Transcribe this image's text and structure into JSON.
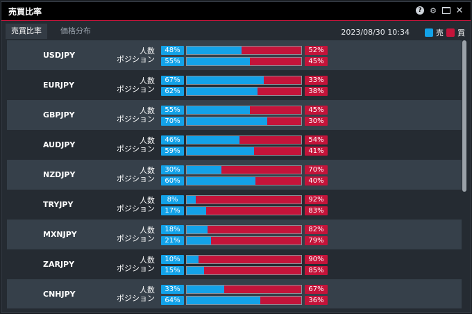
{
  "window": {
    "title": "売買比率"
  },
  "tabs": [
    {
      "label": "売買比率"
    },
    {
      "label": "価格分布"
    }
  ],
  "timestamp": "2023/08/30 10:34",
  "legend": {
    "sell": "売",
    "buy": "買",
    "sell_color": "#13a2e8",
    "buy_color": "#c4143a"
  },
  "row_labels": {
    "count": "人数",
    "position": "ポジション"
  },
  "rows": [
    {
      "pair": "USDJPY",
      "count": {
        "sell": "48%",
        "buy": "52%",
        "sell_value": 48
      },
      "position": {
        "sell": "55%",
        "buy": "45%",
        "sell_value": 55
      }
    },
    {
      "pair": "EURJPY",
      "count": {
        "sell": "67%",
        "buy": "33%",
        "sell_value": 67
      },
      "position": {
        "sell": "62%",
        "buy": "38%",
        "sell_value": 62
      }
    },
    {
      "pair": "GBPJPY",
      "count": {
        "sell": "55%",
        "buy": "45%",
        "sell_value": 55
      },
      "position": {
        "sell": "70%",
        "buy": "30%",
        "sell_value": 70
      }
    },
    {
      "pair": "AUDJPY",
      "count": {
        "sell": "46%",
        "buy": "54%",
        "sell_value": 46
      },
      "position": {
        "sell": "59%",
        "buy": "41%",
        "sell_value": 59
      }
    },
    {
      "pair": "NZDJPY",
      "count": {
        "sell": "30%",
        "buy": "70%",
        "sell_value": 30
      },
      "position": {
        "sell": "60%",
        "buy": "40%",
        "sell_value": 60
      }
    },
    {
      "pair": "TRYJPY",
      "count": {
        "sell": "8%",
        "buy": "92%",
        "sell_value": 8
      },
      "position": {
        "sell": "17%",
        "buy": "83%",
        "sell_value": 17
      }
    },
    {
      "pair": "MXNJPY",
      "count": {
        "sell": "18%",
        "buy": "82%",
        "sell_value": 18
      },
      "position": {
        "sell": "21%",
        "buy": "79%",
        "sell_value": 21
      }
    },
    {
      "pair": "ZARJPY",
      "count": {
        "sell": "10%",
        "buy": "90%",
        "sell_value": 10
      },
      "position": {
        "sell": "15%",
        "buy": "85%",
        "sell_value": 15
      }
    },
    {
      "pair": "CNHJPY",
      "count": {
        "sell": "33%",
        "buy": "67%",
        "sell_value": 33
      },
      "position": {
        "sell": "64%",
        "buy": "36%",
        "sell_value": 64
      }
    }
  ]
}
